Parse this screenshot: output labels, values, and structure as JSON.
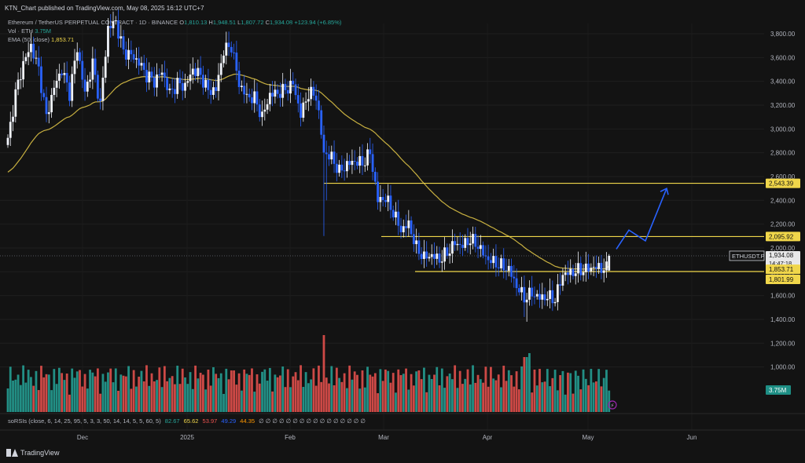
{
  "header": {
    "published_by": "KTN_Chart published on TradingView.com, May 08, 2025 16:12 UTC+7"
  },
  "legend": {
    "symbol": "Ethereum / TetherUS PERPETUAL CONTRACT · 1D · BINANCE",
    "ohlc": {
      "o_label": "O",
      "o": "1,810.13",
      "h_label": "H",
      "h": "1,948.51",
      "l_label": "L",
      "l": "1,807.72",
      "c_label": "C",
      "c": "1,934.08",
      "change": "+123.94 (+6.85%)"
    },
    "vol_label": "Vol · ETH",
    "vol_value": "3.75M",
    "ema_label": "EMA (50, close)",
    "ema_value": "1,853.71"
  },
  "price_axis": {
    "ticks": [
      "3,800.00",
      "3,600.00",
      "3,400.00",
      "3,200.00",
      "3,000.00",
      "2,800.00",
      "2,600.00",
      "2,400.00",
      "2,200.00",
      "2,000.00",
      "1,800.00",
      "1,600.00",
      "1,400.00",
      "1,200.00",
      "1,000.00"
    ]
  },
  "price_labels": {
    "level_high": "2,543.39",
    "level_mid": "2,095.92",
    "symbol_tag": "ETHUSDT.P",
    "last_price": "1,934.08",
    "countdown": "14:47:18",
    "ema_tag": "1,853.71",
    "level_low": "1,801.99",
    "volume_tag": "3.75M"
  },
  "time_axis": {
    "labels": [
      "Dec",
      "2025",
      "Feb",
      "Mar",
      "Apr",
      "May",
      "Jun"
    ]
  },
  "rsi_legend": {
    "label": "soRSIs (close, 6, 14, 25, 95, 5, 3, 3, 50, 14, 14, 5, 5, 60, 5)",
    "v1": "82.67",
    "v2": "65.62",
    "v3": "53.97",
    "v4": "49.29",
    "v5": "44.35",
    "zeros": "∅ ∅ ∅ ∅ ∅ ∅ ∅ ∅ ∅ ∅ ∅ ∅ ∅ ∅ ∅ ∅"
  },
  "footer": {
    "brand": "TradingView"
  },
  "colors": {
    "up": "#f0f3fa",
    "down": "#2962ff",
    "ema": "#c8b040",
    "level": "#f0d64a",
    "vol_up": "#26a69a",
    "vol_down": "#ef5350",
    "projection": "#2962ff"
  },
  "chart_data": {
    "type": "candlestick",
    "symbol": "ETHUSDT.P",
    "interval": "1D",
    "ylim": [
      850,
      3950
    ],
    "horizontal_levels": [
      2543.39,
      2095.92,
      1801.99
    ],
    "ema_last": 1853.71,
    "projection": [
      [
        1934,
        2000
      ],
      [
        2100,
        2150
      ],
      [
        2480,
        2060
      ]
    ],
    "anchors": [
      [
        0,
        2900
      ],
      [
        3,
        3300
      ],
      [
        6,
        3550
      ],
      [
        9,
        3700
      ],
      [
        12,
        3500
      ],
      [
        15,
        3100
      ],
      [
        18,
        3350
      ],
      [
        21,
        3500
      ],
      [
        24,
        3300
      ],
      [
        27,
        3680
      ],
      [
        30,
        3300
      ],
      [
        33,
        3550
      ],
      [
        36,
        3200
      ],
      [
        39,
        3850
      ],
      [
        42,
        3900
      ],
      [
        45,
        3650
      ],
      [
        48,
        3620
      ],
      [
        51,
        3560
      ],
      [
        54,
        3450
      ],
      [
        57,
        3400
      ],
      [
        60,
        3480
      ],
      [
        63,
        3300
      ],
      [
        66,
        3380
      ],
      [
        69,
        3360
      ],
      [
        72,
        3500
      ],
      [
        75,
        3450
      ],
      [
        78,
        3320
      ],
      [
        81,
        3330
      ],
      [
        84,
        3660
      ],
      [
        87,
        3700
      ],
      [
        90,
        3380
      ],
      [
        93,
        3270
      ],
      [
        96,
        3260
      ],
      [
        99,
        3100
      ],
      [
        102,
        3290
      ],
      [
        105,
        3300
      ],
      [
        108,
        3330
      ],
      [
        111,
        3380
      ],
      [
        114,
        3120
      ],
      [
        117,
        3300
      ],
      [
        120,
        3280
      ],
      [
        123,
        2800
      ],
      [
        126,
        2760
      ],
      [
        129,
        2640
      ],
      [
        132,
        2700
      ],
      [
        135,
        2730
      ],
      [
        138,
        2710
      ],
      [
        141,
        2800
      ],
      [
        144,
        2400
      ],
      [
        147,
        2420
      ],
      [
        150,
        2300
      ],
      [
        153,
        2150
      ],
      [
        156,
        2200
      ],
      [
        159,
        2000
      ],
      [
        162,
        1920
      ],
      [
        165,
        1940
      ],
      [
        168,
        1900
      ],
      [
        171,
        1960
      ],
      [
        174,
        2040
      ],
      [
        177,
        2020
      ],
      [
        180,
        2070
      ],
      [
        183,
        2020
      ],
      [
        186,
        1920
      ],
      [
        189,
        1880
      ],
      [
        192,
        1850
      ],
      [
        195,
        1820
      ],
      [
        198,
        1680
      ],
      [
        201,
        1580
      ],
      [
        204,
        1620
      ],
      [
        207,
        1580
      ],
      [
        210,
        1590
      ],
      [
        213,
        1570
      ],
      [
        216,
        1780
      ],
      [
        219,
        1790
      ],
      [
        222,
        1810
      ],
      [
        225,
        1820
      ],
      [
        228,
        1840
      ],
      [
        231,
        1830
      ],
      [
        234,
        1820
      ]
    ],
    "last_candle": {
      "o": 1810.13,
      "h": 1948.51,
      "l": 1807.72,
      "c": 1934.08
    },
    "last_volume": "3.75M"
  }
}
